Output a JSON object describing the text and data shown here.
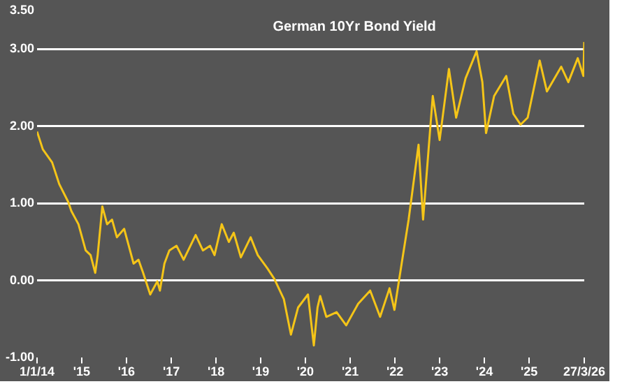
{
  "chart_data": {
    "type": "line",
    "title": "German 10Yr Bond Yield",
    "x": [
      "2014-01-01",
      "2014-02-17",
      "2014-05-04",
      "2014-07-01",
      "2014-09-12",
      "2014-10-08",
      "2014-12-05",
      "2015-02-02",
      "2015-03-14",
      "2015-04-21",
      "2015-05-11",
      "2015-06-18",
      "2015-07-27",
      "2015-09-05",
      "2015-10-15",
      "2015-12-13",
      "2016-01-20",
      "2016-02-28",
      "2016-04-08",
      "2016-05-16",
      "2016-07-13",
      "2016-09-09",
      "2016-09-30",
      "2016-11-06",
      "2016-12-16",
      "2017-02-13",
      "2017-04-12",
      "2017-07-19",
      "2017-09-16",
      "2017-11-14",
      "2017-12-20",
      "2018-02-17",
      "2018-04-16",
      "2018-05-26",
      "2018-07-23",
      "2018-10-11",
      "2018-12-08",
      "2019-02-24",
      "2019-04-23",
      "2019-07-09",
      "2019-09-05",
      "2019-11-02",
      "2020-01-22",
      "2020-03-10",
      "2020-04-09",
      "2020-05-01",
      "2020-06-20",
      "2020-09-12",
      "2020-11-29",
      "2021-03-07",
      "2021-06-13",
      "2021-09-02",
      "2021-11-18",
      "2021-12-28",
      "2022-02-25",
      "2022-04-23",
      "2022-07-13",
      "2022-08-19",
      "2022-11-06",
      "2023-01-01",
      "2023-03-18",
      "2023-05-16",
      "2023-08-01",
      "2023-10-30",
      "2023-12-16",
      "2024-01-15",
      "2024-03-21",
      "2024-06-28",
      "2024-08-25",
      "2024-10-23",
      "2024-12-20",
      "2025-03-28",
      "2025-05-26",
      "2025-09-20",
      "2025-11-17",
      "2026-02-02",
      "2026-03-20",
      "2026-03-27"
    ],
    "series": [
      {
        "color": "#f5c518",
        "values": [
          1.93,
          1.7,
          1.53,
          1.25,
          1.02,
          0.9,
          0.73,
          0.39,
          0.33,
          0.1,
          0.33,
          0.96,
          0.73,
          0.79,
          0.56,
          0.67,
          0.45,
          0.22,
          0.27,
          0.1,
          -0.18,
          -0.01,
          -0.13,
          0.22,
          0.39,
          0.45,
          0.27,
          0.59,
          0.39,
          0.45,
          0.33,
          0.73,
          0.5,
          0.62,
          0.3,
          0.56,
          0.33,
          0.16,
          0.02,
          -0.24,
          -0.7,
          -0.35,
          -0.18,
          -0.84,
          -0.35,
          -0.2,
          -0.47,
          -0.41,
          -0.58,
          -0.3,
          -0.13,
          -0.47,
          -0.1,
          -0.38,
          0.22,
          0.79,
          1.76,
          0.79,
          2.39,
          1.82,
          2.74,
          2.11,
          2.62,
          2.97,
          2.57,
          1.91,
          2.39,
          2.65,
          2.16,
          2.02,
          2.11,
          2.85,
          2.45,
          2.77,
          2.57,
          2.88,
          2.65,
          3.09
        ]
      }
    ],
    "xlim": [
      "2014-01-01",
      "2026-03-27"
    ],
    "xticks": [
      {
        "value": "2014-01-01",
        "label": "1/1/14"
      },
      {
        "value": "2015-01-01",
        "label": "'15"
      },
      {
        "value": "2016-01-01",
        "label": "'16"
      },
      {
        "value": "2017-01-01",
        "label": "'17"
      },
      {
        "value": "2018-01-01",
        "label": "'18"
      },
      {
        "value": "2019-01-01",
        "label": "'19"
      },
      {
        "value": "2020-01-01",
        "label": "'20"
      },
      {
        "value": "2021-01-01",
        "label": "'21"
      },
      {
        "value": "2022-01-01",
        "label": "'22"
      },
      {
        "value": "2023-01-01",
        "label": "'23"
      },
      {
        "value": "2024-01-01",
        "label": "'24"
      },
      {
        "value": "2025-01-01",
        "label": "'25"
      },
      {
        "value": "2026-03-27",
        "label": "27/3/26"
      }
    ],
    "ylim": [
      -1,
      3.5
    ],
    "yticks": [
      {
        "value": -1,
        "label": "-1.00"
      },
      {
        "value": 0,
        "label": "0.00"
      },
      {
        "value": 1,
        "label": "1.00"
      },
      {
        "value": 2,
        "label": "2.00"
      },
      {
        "value": 3,
        "label": "3.00"
      },
      {
        "value": 3.5,
        "label": "3.50"
      }
    ],
    "grid": "y",
    "legend": false,
    "marker": "none",
    "line_style": "solid"
  }
}
